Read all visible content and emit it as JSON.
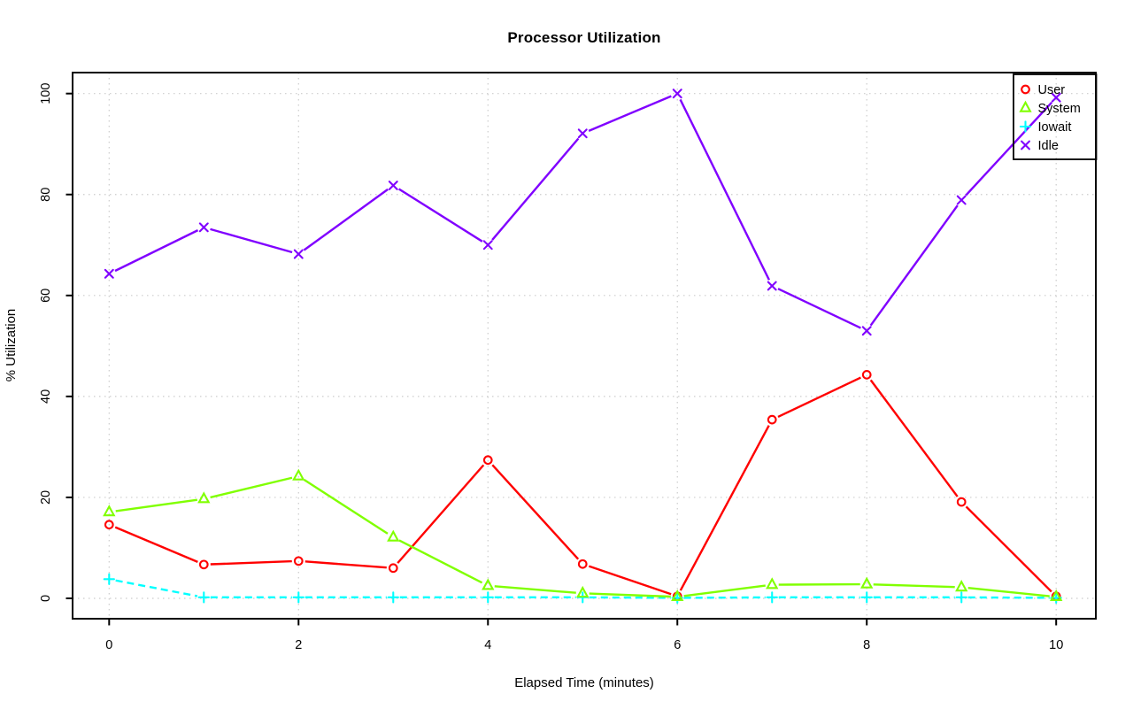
{
  "page": {
    "background": "#FFFFFF"
  },
  "chart_data": {
    "type": "line",
    "title": "Processor Utilization",
    "xlabel": "Elapsed Time (minutes)",
    "ylabel": "% Utilization",
    "x": [
      0,
      1,
      2,
      3,
      4,
      5,
      6,
      7,
      8,
      9,
      10
    ],
    "xticks": [
      0,
      2,
      4,
      6,
      8,
      10
    ],
    "yticks": [
      0,
      20,
      40,
      60,
      80,
      100
    ],
    "xlim": [
      0,
      10
    ],
    "ylim": [
      0,
      100
    ],
    "grid": "dotted-both-axes",
    "grid_color": "#cccccc",
    "axis_color": "#000000",
    "legend_position": "topright",
    "series": [
      {
        "name": "User",
        "color": "#FF0000",
        "marker": "circle",
        "line": "solid",
        "values": [
          14.6,
          6.7,
          7.4,
          6.0,
          27.4,
          6.8,
          0.4,
          35.4,
          44.3,
          19.1,
          0.4
        ]
      },
      {
        "name": "System",
        "color": "#80FF00",
        "marker": "triangle",
        "line": "solid",
        "values": [
          17.1,
          19.7,
          24.2,
          12.1,
          2.5,
          1.0,
          0.3,
          2.7,
          2.8,
          2.2,
          0.3
        ]
      },
      {
        "name": "Iowait",
        "color": "#00FFFF",
        "marker": "plus",
        "line": "dashed",
        "values": [
          3.8,
          0.2,
          0.2,
          0.2,
          0.2,
          0.2,
          0.1,
          0.2,
          0.2,
          0.2,
          0.1
        ]
      },
      {
        "name": "Idle",
        "color": "#8000FF",
        "marker": "x",
        "line": "solid",
        "values": [
          64.3,
          73.5,
          68.2,
          81.8,
          70.0,
          92.1,
          100.0,
          61.9,
          53.0,
          78.9,
          99.2
        ]
      }
    ]
  }
}
